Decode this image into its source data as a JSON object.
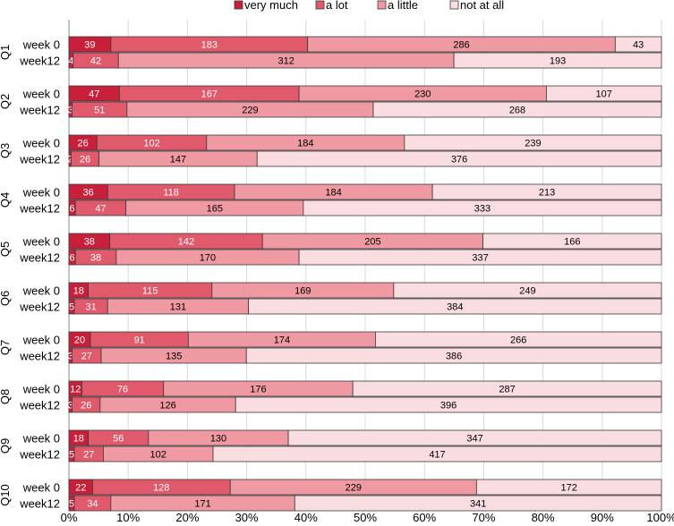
{
  "chart_data": {
    "type": "bar",
    "orientation": "horizontal",
    "stacked": "percent",
    "legend_position": "top-center",
    "legend": [
      "very much",
      "a lot",
      "a little",
      "not at all"
    ],
    "colors": [
      "#c8203a",
      "#e05a6c",
      "#ef9aa2",
      "#fadde1"
    ],
    "label_colors": [
      "#ffffff",
      "#ffffff",
      "#000000",
      "#000000"
    ],
    "xlim": [
      0,
      100
    ],
    "x_ticks": [
      "0%",
      "10%",
      "20%",
      "30%",
      "40%",
      "50%",
      "60%",
      "70%",
      "80%",
      "90%",
      "100%"
    ],
    "groups": [
      {
        "name": "Q1",
        "rows": [
          {
            "label": "week 0",
            "values": [
              39,
              183,
              286,
              43
            ]
          },
          {
            "label": "week12",
            "values": [
              4,
              42,
              312,
              193
            ]
          }
        ]
      },
      {
        "name": "Q2",
        "rows": [
          {
            "label": "week 0",
            "values": [
              47,
              167,
              230,
              107
            ]
          },
          {
            "label": "week12",
            "values": [
              3,
              51,
              229,
              268
            ]
          }
        ]
      },
      {
        "name": "Q3",
        "rows": [
          {
            "label": "week 0",
            "values": [
              26,
              102,
              184,
              239
            ]
          },
          {
            "label": "week12",
            "values": [
              2,
              26,
              147,
              376
            ]
          }
        ]
      },
      {
        "name": "Q4",
        "rows": [
          {
            "label": "week 0",
            "values": [
              36,
              118,
              184,
              213
            ]
          },
          {
            "label": "week12",
            "values": [
              6,
              47,
              165,
              333
            ]
          }
        ]
      },
      {
        "name": "Q5",
        "rows": [
          {
            "label": "week 0",
            "values": [
              38,
              142,
              205,
              166
            ]
          },
          {
            "label": "week12",
            "values": [
              6,
              38,
              170,
              337
            ]
          }
        ]
      },
      {
        "name": "Q6",
        "rows": [
          {
            "label": "week 0",
            "values": [
              18,
              115,
              169,
              249
            ]
          },
          {
            "label": "week12",
            "values": [
              5,
              31,
              131,
              384
            ]
          }
        ]
      },
      {
        "name": "Q7",
        "rows": [
          {
            "label": "week 0",
            "values": [
              20,
              91,
              174,
              266
            ]
          },
          {
            "label": "week12",
            "values": [
              3,
              27,
              135,
              386
            ]
          }
        ]
      },
      {
        "name": "Q8",
        "rows": [
          {
            "label": "week 0",
            "values": [
              12,
              76,
              176,
              287
            ]
          },
          {
            "label": "week12",
            "values": [
              3,
              26,
              126,
              396
            ]
          }
        ]
      },
      {
        "name": "Q9",
        "rows": [
          {
            "label": "week 0",
            "values": [
              18,
              56,
              130,
              347
            ]
          },
          {
            "label": "week12",
            "values": [
              5,
              27,
              102,
              417
            ]
          }
        ]
      },
      {
        "name": "Q10",
        "rows": [
          {
            "label": "week 0",
            "values": [
              22,
              128,
              229,
              172
            ]
          },
          {
            "label": "week12",
            "values": [
              5,
              34,
              171,
              341
            ]
          }
        ]
      }
    ]
  }
}
